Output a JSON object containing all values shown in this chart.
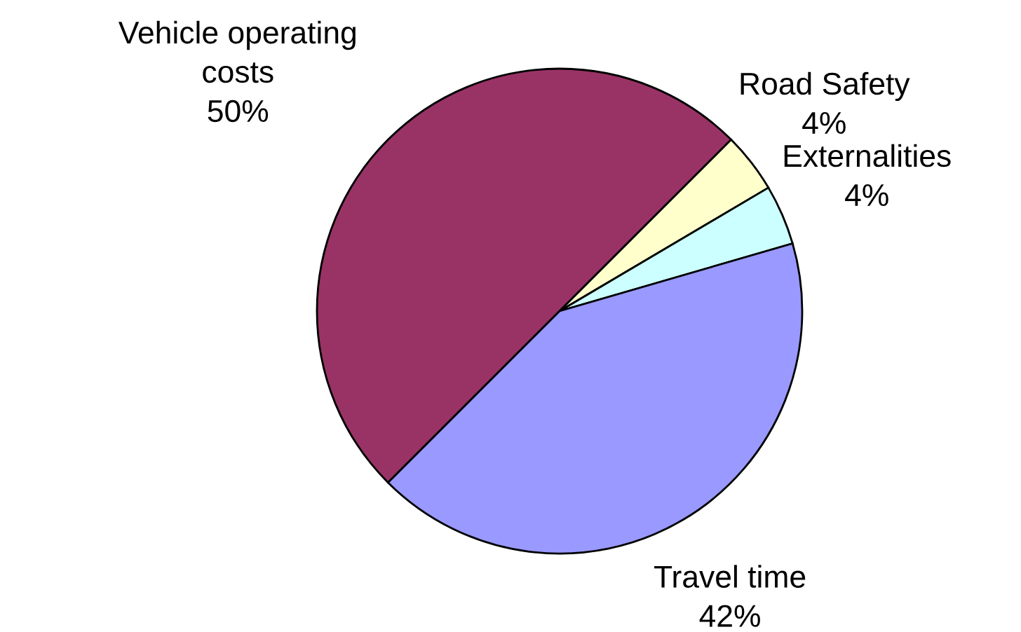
{
  "chart_data": {
    "type": "pie",
    "categories": [
      "Vehicle operating\ncosts",
      "Road Safety",
      "Externalities",
      "Travel time"
    ],
    "values": [
      50,
      4,
      4,
      42
    ],
    "colors": [
      "#993366",
      "#ffffcc",
      "#ccffff",
      "#9999ff"
    ],
    "value_labels": [
      "50%",
      "4%",
      "4%",
      "42%"
    ],
    "legend": false
  }
}
